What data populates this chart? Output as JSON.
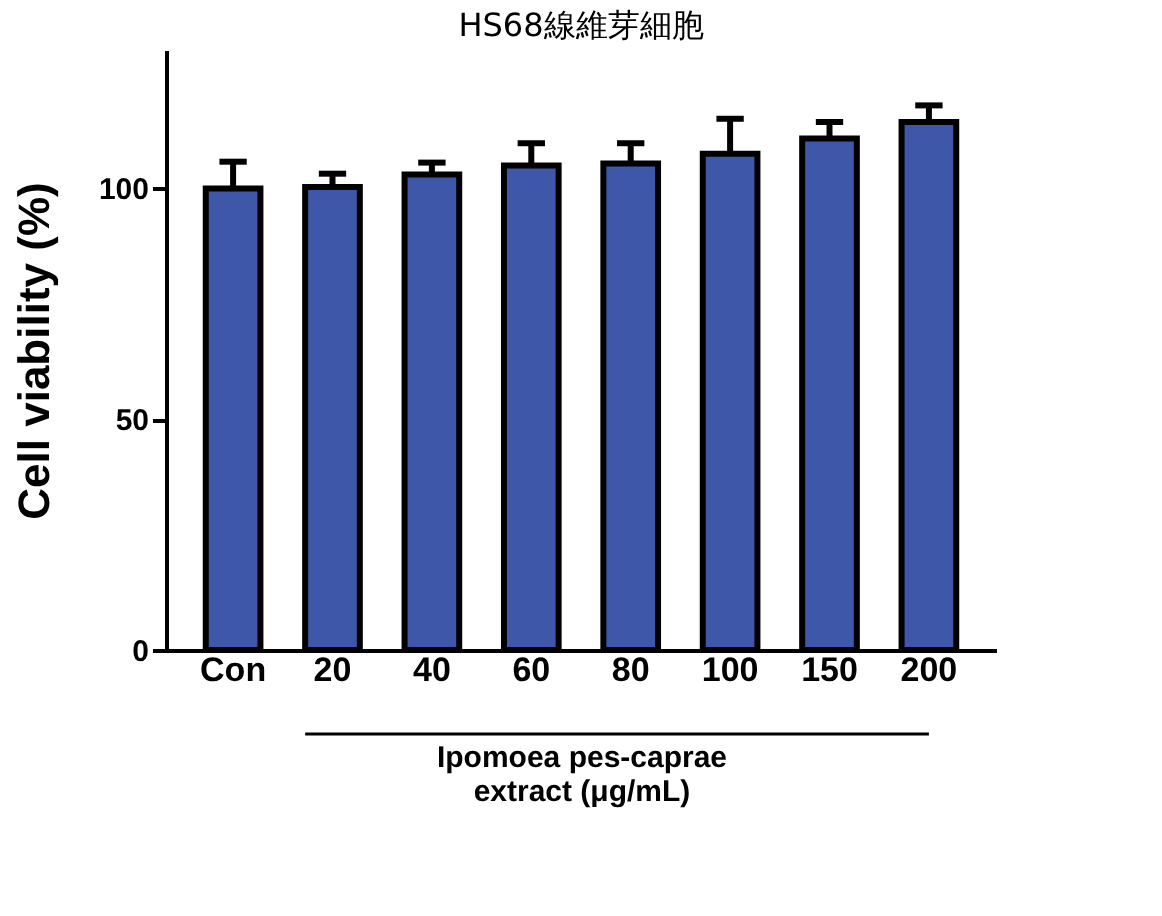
{
  "chart_data": {
    "type": "bar",
    "title": "HS68線維芽細胞",
    "xlabel": "Ipomoea pes-caprae\nextract (μg/mL)",
    "ylabel": "Cell viability (%)",
    "categories": [
      "Con",
      "20",
      "40",
      "60",
      "80",
      "100",
      "150",
      "200"
    ],
    "values": [
      100,
      100.3,
      103,
      105,
      105.4,
      107.5,
      110.8,
      114.4
    ],
    "errors": [
      [
        100,
        105.8
      ],
      [
        100.3,
        103.2
      ],
      [
        103,
        105.6
      ],
      [
        105,
        109.8
      ],
      [
        105.4,
        109.8
      ],
      [
        107.5,
        115.1
      ],
      [
        110.8,
        114.4
      ],
      [
        114.4,
        118
      ]
    ],
    "color": "#3f57a8",
    "ylim": [
      0,
      130
    ],
    "yticks": [
      0,
      50,
      100
    ],
    "grid": false
  }
}
